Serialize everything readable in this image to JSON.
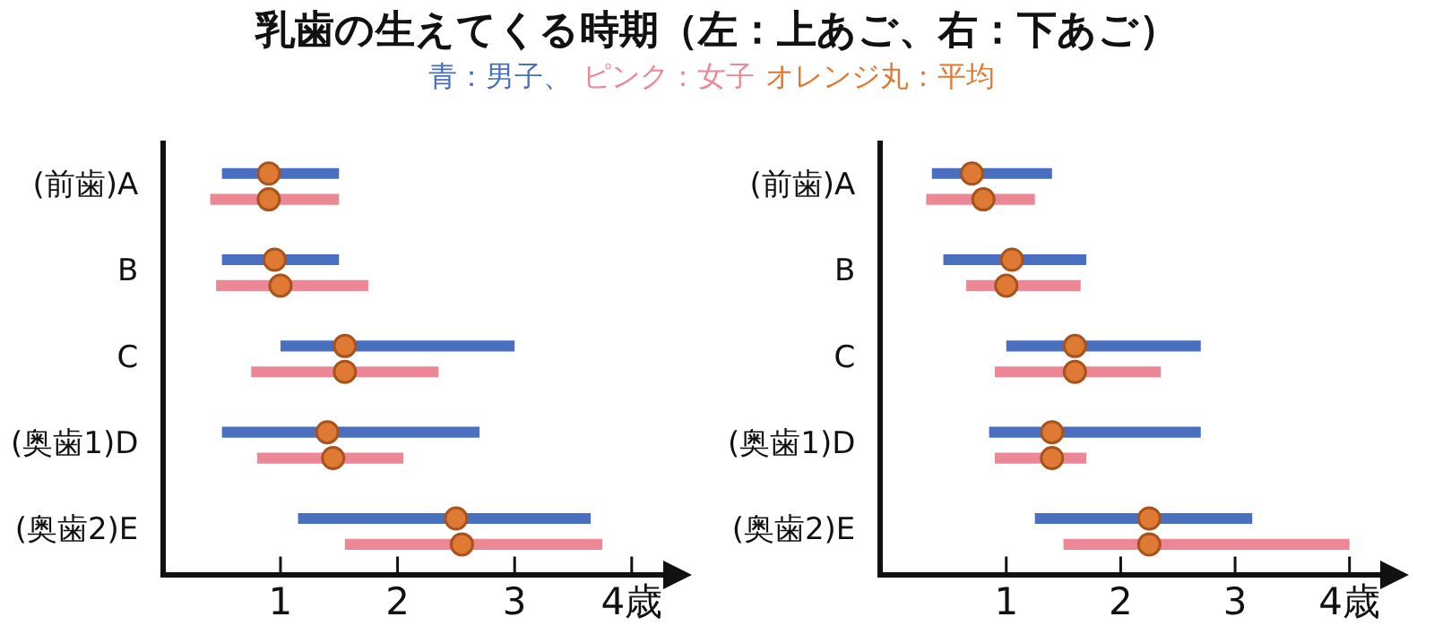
{
  "chart_data": [
    {
      "type": "bar",
      "orientation": "horizontal",
      "title": "乳歯の生えてくる時期（左：上あご、右：下あご）",
      "legend": "top",
      "marker": "circle",
      "categories": [
        "(前歯)A",
        "B",
        "C",
        "(奥歯1)D",
        "(奥歯2)E"
      ],
      "series": [
        {
          "name": "青：男子、",
          "color": "#4a6fc0",
          "base": [
            0.5,
            0.5,
            1.0,
            0.5,
            1.15
          ],
          "values": [
            1.0,
            1.0,
            2.0,
            2.2,
            2.5
          ]
        },
        {
          "name": "ピンク：女子",
          "color": "#ec8796",
          "base": [
            0.4,
            0.45,
            0.75,
            0.8,
            1.55
          ],
          "values": [
            1.1,
            1.3,
            1.6,
            1.25,
            2.2
          ]
        },
        {
          "name": "オレンジ丸：平均",
          "type": "scatter",
          "color": "#df7a35",
          "values": [
            0.9,
            0.95,
            1.55,
            1.4,
            2.5
          ]
        },
        {
          "type": "scatter",
          "color": "#df7a35",
          "values": [
            0.9,
            1.0,
            1.55,
            1.45,
            2.55
          ]
        }
      ],
      "xlim": [
        0,
        4.3
      ],
      "xticks": [
        1,
        2,
        3,
        {
          "value": 4,
          "label": "4歳"
        }
      ]
    },
    {
      "type": "bar",
      "orientation": "horizontal",
      "marker": "circle",
      "categories": [
        "(前歯)A",
        "B",
        "C",
        "(奥歯1)D",
        "(奥歯2)E"
      ],
      "series": [
        {
          "color": "#4a6fc0",
          "base": [
            0.35,
            0.45,
            1.0,
            0.85,
            1.25
          ],
          "values": [
            1.05,
            1.25,
            1.7,
            1.85,
            1.9
          ]
        },
        {
          "color": "#ec8796",
          "base": [
            0.3,
            0.65,
            0.9,
            0.9,
            1.5
          ],
          "values": [
            0.95,
            1.0,
            1.45,
            0.8,
            2.5
          ]
        },
        {
          "type": "scatter",
          "color": "#df7a35",
          "values": [
            0.7,
            1.05,
            1.6,
            1.4,
            2.25
          ]
        },
        {
          "type": "scatter",
          "color": "#df7a35",
          "values": [
            0.8,
            1.0,
            1.6,
            1.4,
            2.25
          ]
        }
      ],
      "xlim": [
        -0.1,
        4.3
      ],
      "xticks": [
        1,
        2,
        3,
        {
          "value": 4,
          "label": "4歳"
        }
      ]
    }
  ]
}
